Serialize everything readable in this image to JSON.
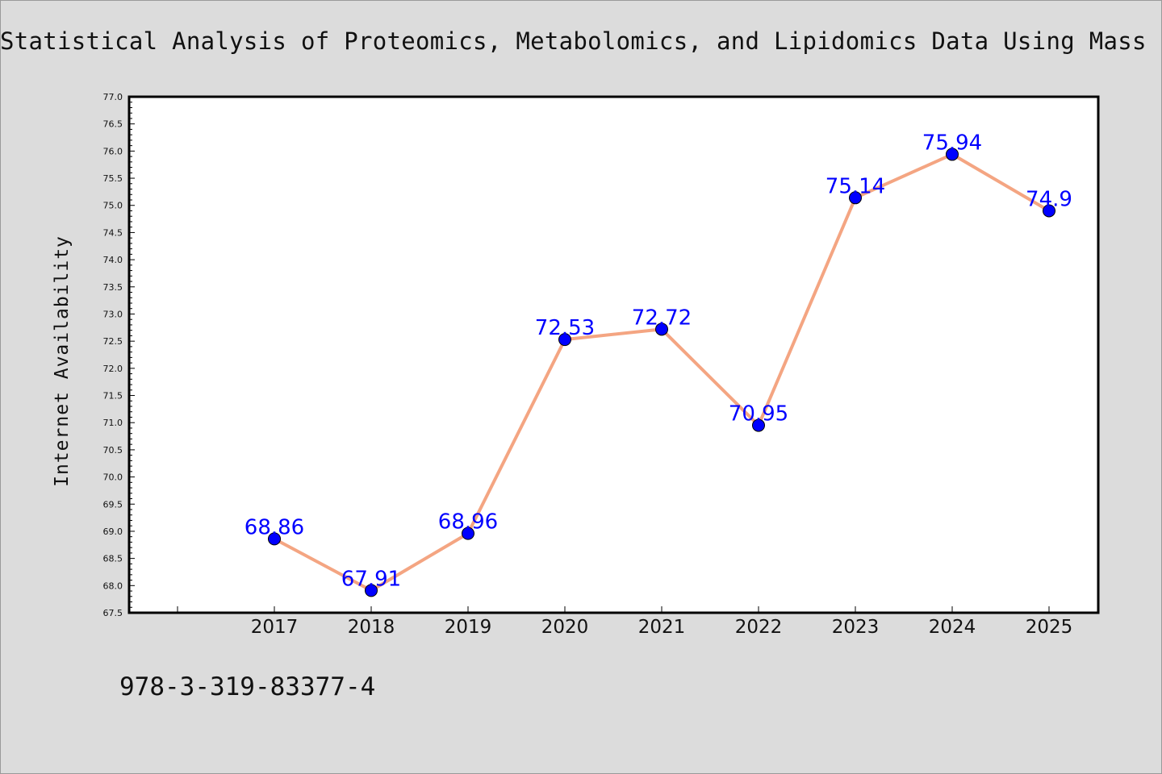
{
  "chart_data": {
    "type": "line",
    "title": "Statistical Analysis of Proteomics, Metabolomics, and Lipidomics Data Using Mass",
    "xlabel": "",
    "ylabel": "Internet Availability",
    "categories": [
      "2017",
      "2018",
      "2019",
      "2020",
      "2021",
      "2022",
      "2023",
      "2024",
      "2025"
    ],
    "series": [
      {
        "values": [
          68.86,
          67.91,
          68.96,
          72.53,
          72.72,
          70.95,
          75.14,
          75.94,
          74.9
        ],
        "labels": [
          "68.86",
          "67.91",
          "68.96",
          "72.53",
          "72.72",
          "70.95",
          "75.14",
          "75.94",
          "74.9"
        ]
      }
    ],
    "ylim": [
      67.5,
      77.0
    ],
    "yticks": [
      "67.5",
      "68.0",
      "68.5",
      "69.0",
      "69.5",
      "70.0",
      "70.5",
      "71.0",
      "71.5",
      "72.0",
      "72.5",
      "73.0",
      "73.5",
      "74.0",
      "74.5",
      "75.0",
      "75.5",
      "76.0",
      "76.5",
      "77.0"
    ],
    "grid": false,
    "line_color": "#f4a582",
    "marker_color": "#0000ff",
    "label_color": "#0000ff"
  },
  "footer": {
    "isbn": "978-3-319-83377-4"
  }
}
